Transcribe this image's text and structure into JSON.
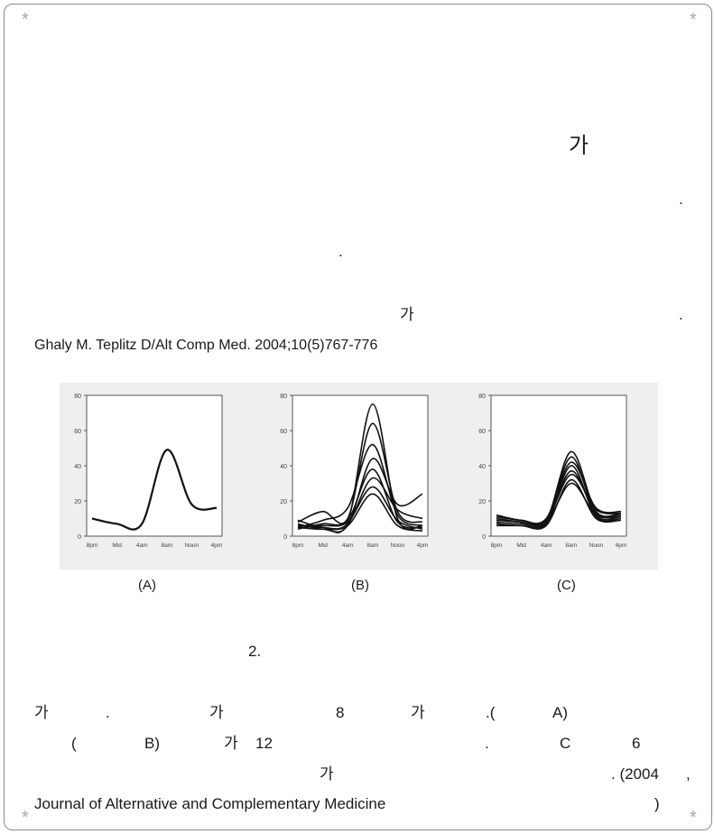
{
  "decor": {
    "star": "*"
  },
  "para1": {
    "ga": "가",
    "dot1": ".",
    "dot2": ".",
    "ga2": "가",
    "dot3": "."
  },
  "citation": "Ghaly M. Teplitz D/Alt Comp Med. 2004;10(5)767-776",
  "figure": {
    "captions": [
      "(A)",
      "(B)",
      "(C)"
    ],
    "x_ticks": [
      "8pm",
      "Mid",
      "4am",
      "8am",
      "Noon",
      "4pm"
    ],
    "y_ticks": [
      "0",
      "20",
      "40",
      "60",
      "80"
    ]
  },
  "chart_data": [
    {
      "type": "line",
      "title": "",
      "xlabel": "",
      "ylabel": "",
      "ylim": [
        0,
        80
      ],
      "categories": [
        "8pm",
        "Mid",
        "4am",
        "8am",
        "Noon",
        "4pm"
      ],
      "series": [
        {
          "values": [
            10,
            7,
            7,
            49,
            18,
            16
          ]
        }
      ]
    },
    {
      "type": "line",
      "title": "",
      "xlabel": "",
      "ylabel": "",
      "ylim": [
        0,
        80
      ],
      "categories": [
        "8pm",
        "Mid",
        "4am",
        "8am",
        "Noon",
        "4pm"
      ],
      "series": [
        {
          "values": [
            6,
            5,
            8,
            75,
            10,
            6
          ]
        },
        {
          "values": [
            8,
            14,
            10,
            64,
            14,
            8
          ]
        },
        {
          "values": [
            5,
            9,
            16,
            52,
            12,
            6
          ]
        },
        {
          "values": [
            7,
            4,
            6,
            44,
            18,
            24
          ]
        },
        {
          "values": [
            4,
            7,
            9,
            38,
            8,
            5
          ]
        },
        {
          "values": [
            9,
            5,
            7,
            33,
            15,
            10
          ]
        },
        {
          "values": [
            6,
            6,
            8,
            28,
            9,
            4
          ]
        },
        {
          "values": [
            5,
            4,
            6,
            24,
            6,
            3
          ]
        }
      ]
    },
    {
      "type": "line",
      "title": "",
      "xlabel": "",
      "ylabel": "",
      "ylim": [
        0,
        80
      ],
      "categories": [
        "8pm",
        "Mid",
        "4am",
        "8am",
        "Noon",
        "4pm"
      ],
      "series": [
        {
          "values": [
            10,
            8,
            9,
            48,
            14,
            13
          ]
        },
        {
          "values": [
            8,
            7,
            8,
            45,
            12,
            11
          ]
        },
        {
          "values": [
            12,
            9,
            10,
            42,
            16,
            14
          ]
        },
        {
          "values": [
            7,
            6,
            7,
            40,
            11,
            10
          ]
        },
        {
          "values": [
            9,
            8,
            8,
            37,
            13,
            12
          ]
        },
        {
          "values": [
            11,
            9,
            9,
            35,
            15,
            13
          ]
        },
        {
          "values": [
            6,
            6,
            6,
            32,
            10,
            9
          ]
        },
        {
          "values": [
            10,
            8,
            8,
            30,
            12,
            11
          ]
        }
      ]
    }
  ],
  "para2": {
    "heading": "2.",
    "line1": [
      "가",
      ".",
      "가",
      "8",
      "가",
      ".(",
      "A)"
    ],
    "line2": [
      "(",
      "B)",
      "가",
      "12",
      ".",
      "C",
      "6"
    ],
    "line3": [
      "가",
      ". (2004",
      ","
    ],
    "line4": [
      "Journal of Alternative and Complementary Medicine",
      ")"
    ]
  }
}
